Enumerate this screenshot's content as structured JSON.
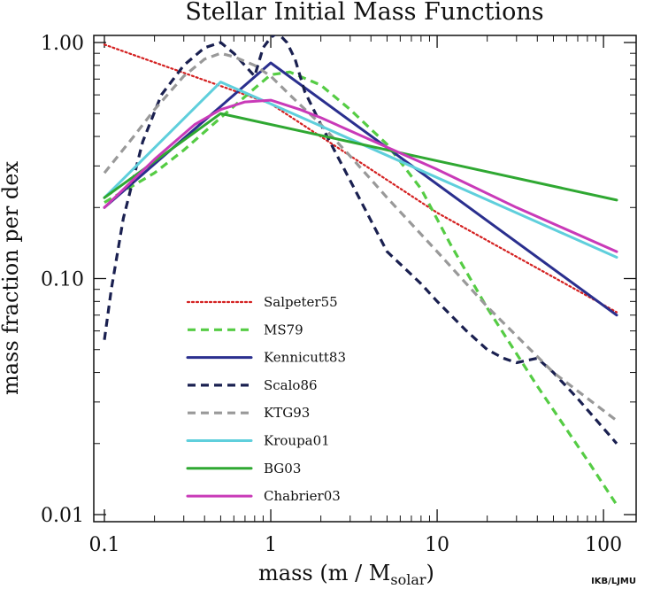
{
  "chart_data": {
    "type": "line",
    "title": "Stellar Initial Mass Functions",
    "xlabel_main": "mass  (m / M",
    "xlabel_sub": "solar",
    "xlabel_close": ")",
    "ylabel": "mass fraction per dex",
    "credit": "IKB/LJMU",
    "x_scale": "log",
    "y_scale": "log",
    "xlim": [
      0.1,
      120
    ],
    "ylim": [
      0.01,
      1.0
    ],
    "x_ticks": [
      {
        "value": 0.1,
        "label": "0.1"
      },
      {
        "value": 1,
        "label": "1"
      },
      {
        "value": 10,
        "label": "10"
      },
      {
        "value": 100,
        "label": "100"
      }
    ],
    "y_ticks": [
      {
        "value": 0.01,
        "label": "0.01"
      },
      {
        "value": 0.1,
        "label": "0.10"
      },
      {
        "value": 1.0,
        "label": "1.00"
      }
    ],
    "grid": false,
    "legend_position": "lower-left",
    "series": [
      {
        "name": "Salpeter55",
        "color": "#d42020",
        "style": "dotted",
        "x": [
          0.1,
          1,
          10,
          120
        ],
        "y": [
          0.98,
          0.55,
          0.19,
          0.072
        ]
      },
      {
        "name": "MS79",
        "color": "#55cc44",
        "style": "dashed",
        "x": [
          0.1,
          0.2,
          0.3,
          0.5,
          0.8,
          1.0,
          1.3,
          2,
          3,
          5,
          8,
          12,
          20,
          40,
          80,
          120
        ],
        "y": [
          0.21,
          0.28,
          0.35,
          0.48,
          0.64,
          0.73,
          0.75,
          0.66,
          0.52,
          0.37,
          0.24,
          0.14,
          0.075,
          0.035,
          0.017,
          0.011
        ]
      },
      {
        "name": "Kennicutt83",
        "color": "#2a2f8e",
        "style": "solid",
        "x": [
          0.1,
          1,
          120
        ],
        "y": [
          0.2,
          0.82,
          0.07
        ]
      },
      {
        "name": "Scalo86",
        "color": "#1a2050",
        "style": "dashed",
        "x": [
          0.1,
          0.11,
          0.13,
          0.17,
          0.22,
          0.3,
          0.4,
          0.5,
          0.6,
          0.8,
          0.9,
          1.0,
          1.1,
          1.25,
          1.4,
          1.6,
          2,
          3,
          5,
          8,
          10,
          15,
          20,
          25,
          30,
          40,
          50,
          70,
          120
        ],
        "y": [
          0.055,
          0.09,
          0.18,
          0.38,
          0.6,
          0.8,
          0.95,
          1.0,
          0.9,
          0.72,
          0.95,
          1.05,
          1.1,
          1.0,
          0.85,
          0.62,
          0.45,
          0.26,
          0.13,
          0.095,
          0.08,
          0.06,
          0.05,
          0.046,
          0.044,
          0.046,
          0.04,
          0.031,
          0.02
        ]
      },
      {
        "name": "KTG93",
        "color": "#999999",
        "style": "dashed",
        "x": [
          0.1,
          0.15,
          0.2,
          0.3,
          0.4,
          0.5,
          0.6,
          0.8,
          1.0,
          1.3,
          2,
          3,
          5,
          10,
          20,
          50,
          120
        ],
        "y": [
          0.28,
          0.4,
          0.52,
          0.72,
          0.85,
          0.9,
          0.87,
          0.8,
          0.72,
          0.6,
          0.45,
          0.33,
          0.22,
          0.13,
          0.076,
          0.04,
          0.025
        ]
      },
      {
        "name": "Kroupa01",
        "color": "#5fcfdc",
        "style": "solid",
        "x": [
          0.1,
          0.5,
          1,
          120
        ],
        "y": [
          0.22,
          0.68,
          0.55,
          0.123
        ]
      },
      {
        "name": "BG03",
        "color": "#2fa832",
        "style": "solid",
        "x": [
          0.1,
          0.5,
          120
        ],
        "y": [
          0.22,
          0.5,
          0.215
        ]
      },
      {
        "name": "Chabrier03",
        "color": "#c93ab8",
        "style": "solid",
        "x": [
          0.1,
          0.2,
          0.35,
          0.5,
          0.7,
          1.0,
          1.5,
          2,
          5,
          10,
          30,
          120
        ],
        "y": [
          0.2,
          0.32,
          0.45,
          0.52,
          0.56,
          0.57,
          0.52,
          0.48,
          0.36,
          0.29,
          0.2,
          0.13
        ]
      }
    ]
  }
}
